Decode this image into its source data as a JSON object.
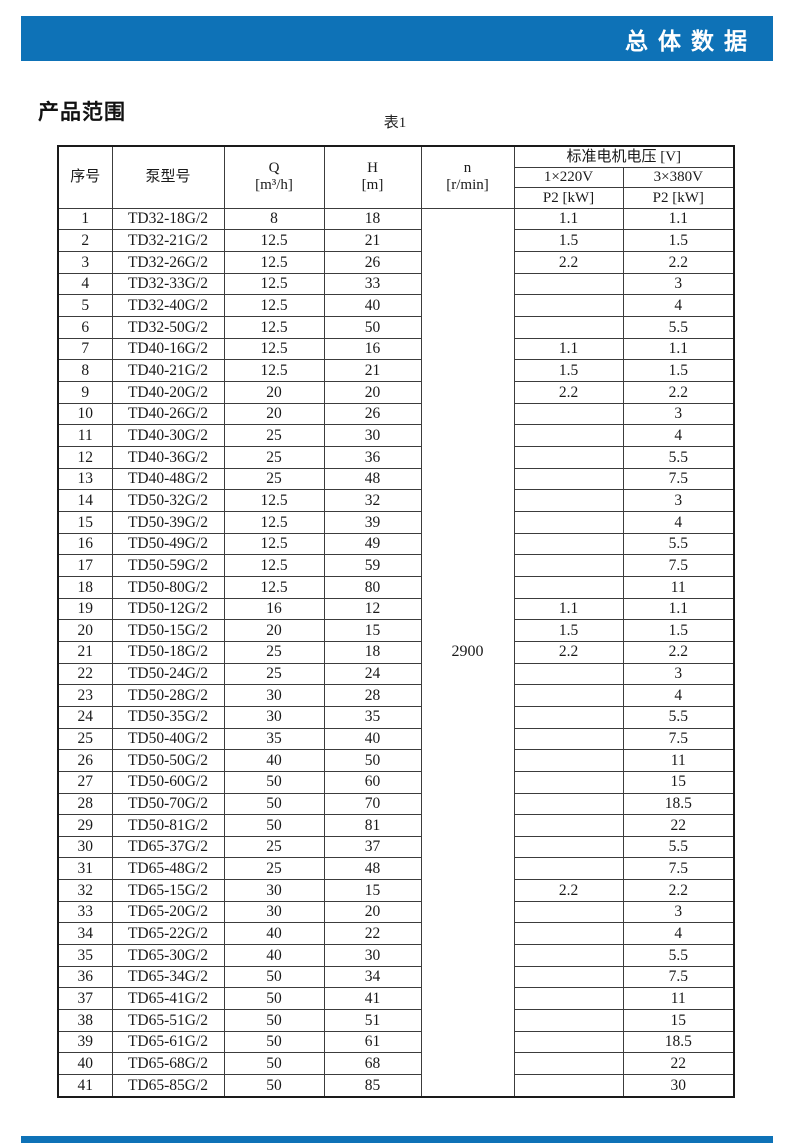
{
  "page": {
    "header_bar": {
      "title": "总体数据",
      "color": "#0e72b7"
    },
    "section_title": "产品范围",
    "table_caption": "表1",
    "footer_bar": {
      "color": "#0e72b7"
    }
  },
  "table": {
    "headers": {
      "no": "序号",
      "model": "泵型号",
      "q": "Q\n[m³/h]",
      "h": "H\n[m]",
      "n": "n\n[r/min]",
      "voltage_group": "标准电机电压 [V]",
      "v220": "1×220V",
      "v380": "3×380V",
      "p2_220": "P2 [kW]",
      "p2_380": "P2 [kW]"
    },
    "n_value": "2900",
    "rows": [
      {
        "no": "1",
        "model": "TD32-18G/2",
        "q": "8",
        "h": "18",
        "p220": "1.1",
        "p380": "1.1"
      },
      {
        "no": "2",
        "model": "TD32-21G/2",
        "q": "12.5",
        "h": "21",
        "p220": "1.5",
        "p380": "1.5"
      },
      {
        "no": "3",
        "model": "TD32-26G/2",
        "q": "12.5",
        "h": "26",
        "p220": "2.2",
        "p380": "2.2"
      },
      {
        "no": "4",
        "model": "TD32-33G/2",
        "q": "12.5",
        "h": "33",
        "p220": "",
        "p380": "3"
      },
      {
        "no": "5",
        "model": "TD32-40G/2",
        "q": "12.5",
        "h": "40",
        "p220": "",
        "p380": "4"
      },
      {
        "no": "6",
        "model": "TD32-50G/2",
        "q": "12.5",
        "h": "50",
        "p220": "",
        "p380": "5.5"
      },
      {
        "no": "7",
        "model": "TD40-16G/2",
        "q": "12.5",
        "h": "16",
        "p220": "1.1",
        "p380": "1.1"
      },
      {
        "no": "8",
        "model": "TD40-21G/2",
        "q": "12.5",
        "h": "21",
        "p220": "1.5",
        "p380": "1.5"
      },
      {
        "no": "9",
        "model": "TD40-20G/2",
        "q": "20",
        "h": "20",
        "p220": "2.2",
        "p380": "2.2"
      },
      {
        "no": "10",
        "model": "TD40-26G/2",
        "q": "20",
        "h": "26",
        "p220": "",
        "p380": "3"
      },
      {
        "no": "11",
        "model": "TD40-30G/2",
        "q": "25",
        "h": "30",
        "p220": "",
        "p380": "4"
      },
      {
        "no": "12",
        "model": "TD40-36G/2",
        "q": "25",
        "h": "36",
        "p220": "",
        "p380": "5.5"
      },
      {
        "no": "13",
        "model": "TD40-48G/2",
        "q": "25",
        "h": "48",
        "p220": "",
        "p380": "7.5"
      },
      {
        "no": "14",
        "model": "TD50-32G/2",
        "q": "12.5",
        "h": "32",
        "p220": "",
        "p380": "3"
      },
      {
        "no": "15",
        "model": "TD50-39G/2",
        "q": "12.5",
        "h": "39",
        "p220": "",
        "p380": "4"
      },
      {
        "no": "16",
        "model": "TD50-49G/2",
        "q": "12.5",
        "h": "49",
        "p220": "",
        "p380": "5.5"
      },
      {
        "no": "17",
        "model": "TD50-59G/2",
        "q": "12.5",
        "h": "59",
        "p220": "",
        "p380": "7.5"
      },
      {
        "no": "18",
        "model": "TD50-80G/2",
        "q": "12.5",
        "h": "80",
        "p220": "",
        "p380": "11"
      },
      {
        "no": "19",
        "model": "TD50-12G/2",
        "q": "16",
        "h": "12",
        "p220": "1.1",
        "p380": "1.1"
      },
      {
        "no": "20",
        "model": "TD50-15G/2",
        "q": "20",
        "h": "15",
        "p220": "1.5",
        "p380": "1.5"
      },
      {
        "no": "21",
        "model": "TD50-18G/2",
        "q": "25",
        "h": "18",
        "p220": "2.2",
        "p380": "2.2"
      },
      {
        "no": "22",
        "model": "TD50-24G/2",
        "q": "25",
        "h": "24",
        "p220": "",
        "p380": "3"
      },
      {
        "no": "23",
        "model": "TD50-28G/2",
        "q": "30",
        "h": "28",
        "p220": "",
        "p380": "4"
      },
      {
        "no": "24",
        "model": "TD50-35G/2",
        "q": "30",
        "h": "35",
        "p220": "",
        "p380": "5.5"
      },
      {
        "no": "25",
        "model": "TD50-40G/2",
        "q": "35",
        "h": "40",
        "p220": "",
        "p380": "7.5"
      },
      {
        "no": "26",
        "model": "TD50-50G/2",
        "q": "40",
        "h": "50",
        "p220": "",
        "p380": "11"
      },
      {
        "no": "27",
        "model": "TD50-60G/2",
        "q": "50",
        "h": "60",
        "p220": "",
        "p380": "15"
      },
      {
        "no": "28",
        "model": "TD50-70G/2",
        "q": "50",
        "h": "70",
        "p220": "",
        "p380": "18.5"
      },
      {
        "no": "29",
        "model": "TD50-81G/2",
        "q": "50",
        "h": "81",
        "p220": "",
        "p380": "22"
      },
      {
        "no": "30",
        "model": "TD65-37G/2",
        "q": "25",
        "h": "37",
        "p220": "",
        "p380": "5.5"
      },
      {
        "no": "31",
        "model": "TD65-48G/2",
        "q": "25",
        "h": "48",
        "p220": "",
        "p380": "7.5"
      },
      {
        "no": "32",
        "model": "TD65-15G/2",
        "q": "30",
        "h": "15",
        "p220": "2.2",
        "p380": "2.2"
      },
      {
        "no": "33",
        "model": "TD65-20G/2",
        "q": "30",
        "h": "20",
        "p220": "",
        "p380": "3"
      },
      {
        "no": "34",
        "model": "TD65-22G/2",
        "q": "40",
        "h": "22",
        "p220": "",
        "p380": "4"
      },
      {
        "no": "35",
        "model": "TD65-30G/2",
        "q": "40",
        "h": "30",
        "p220": "",
        "p380": "5.5"
      },
      {
        "no": "36",
        "model": "TD65-34G/2",
        "q": "50",
        "h": "34",
        "p220": "",
        "p380": "7.5"
      },
      {
        "no": "37",
        "model": "TD65-41G/2",
        "q": "50",
        "h": "41",
        "p220": "",
        "p380": "11"
      },
      {
        "no": "38",
        "model": "TD65-51G/2",
        "q": "50",
        "h": "51",
        "p220": "",
        "p380": "15"
      },
      {
        "no": "39",
        "model": "TD65-61G/2",
        "q": "50",
        "h": "61",
        "p220": "",
        "p380": "18.5"
      },
      {
        "no": "40",
        "model": "TD65-68G/2",
        "q": "50",
        "h": "68",
        "p220": "",
        "p380": "22"
      },
      {
        "no": "41",
        "model": "TD65-85G/2",
        "q": "50",
        "h": "85",
        "p220": "",
        "p380": "30"
      }
    ]
  }
}
